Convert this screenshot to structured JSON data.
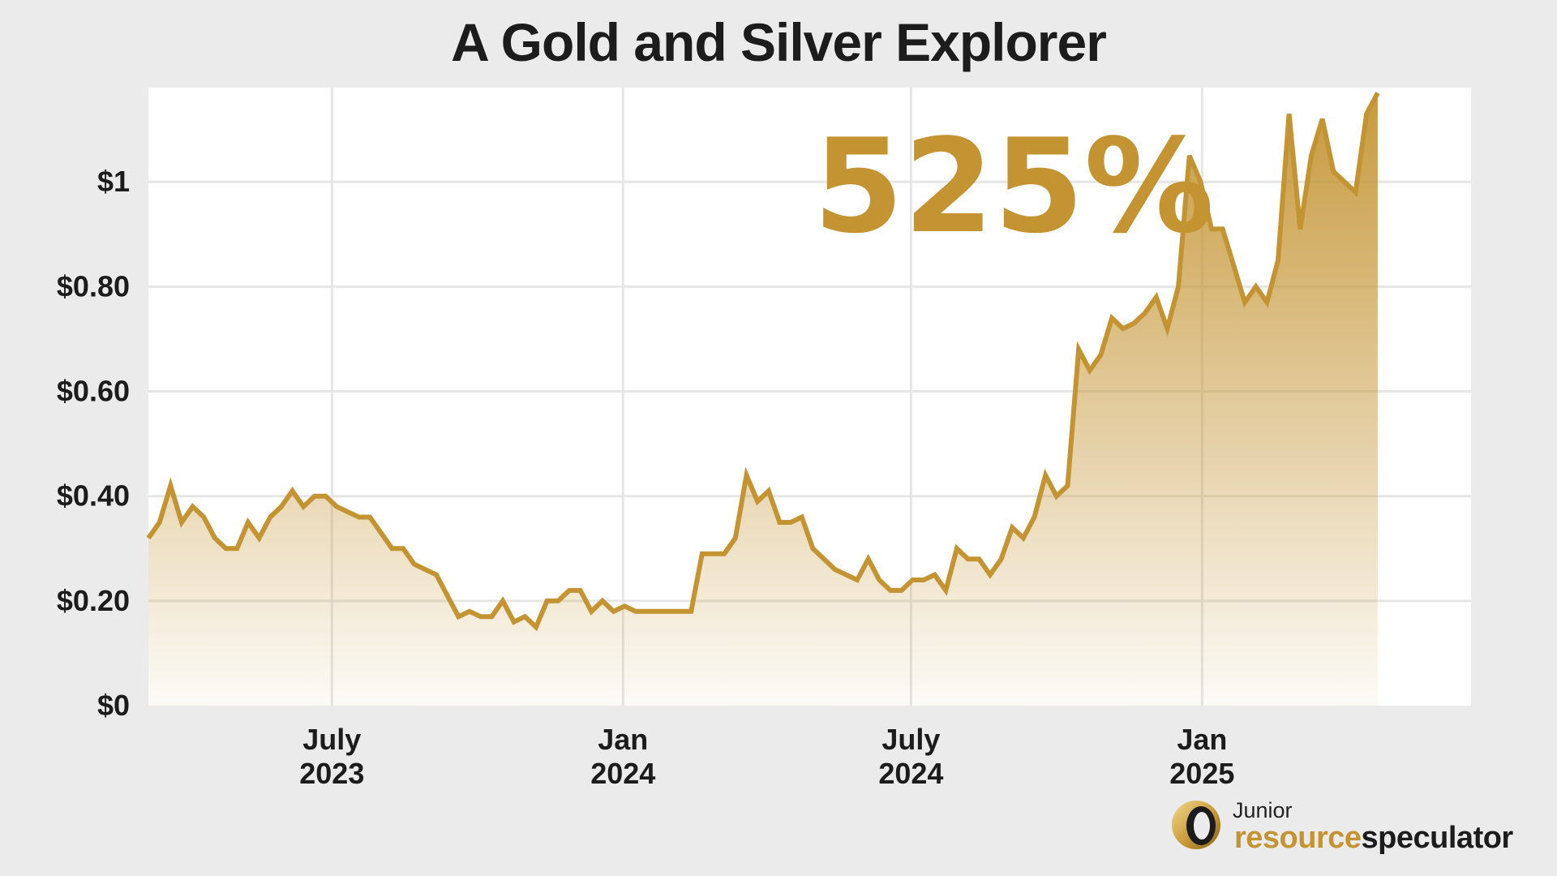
{
  "title": "A Gold and Silver Explorer",
  "annotation": "525%",
  "logo": {
    "line1": "Junior",
    "word1": "resource",
    "word2": "speculator"
  },
  "colors": {
    "line": "#c49433",
    "fill_top": "#c49433",
    "background": "#ebebeb",
    "plot_bg": "#ffffff",
    "grid": "#e6e6e6"
  },
  "chart_data": {
    "type": "area",
    "title": "A Gold and Silver Explorer",
    "xlabel": "",
    "ylabel": "",
    "grid": true,
    "yticks": [
      {
        "value": 0,
        "label": "$0"
      },
      {
        "value": 0.2,
        "label": "$0.20"
      },
      {
        "value": 0.4,
        "label": "$0.40"
      },
      {
        "value": 0.6,
        "label": "$0.60"
      },
      {
        "value": 0.8,
        "label": "$0.80"
      },
      {
        "value": 1.0,
        "label": "$1"
      }
    ],
    "xticks": [
      {
        "date": "2023-07-01",
        "line1": "July",
        "line2": "2023"
      },
      {
        "date": "2024-01-01",
        "line1": "Jan",
        "line2": "2024"
      },
      {
        "date": "2024-07-01",
        "line1": "July",
        "line2": "2024"
      },
      {
        "date": "2025-01-01",
        "line1": "Jan",
        "line2": "2025"
      }
    ],
    "xlim": [
      "2023-03-07",
      "2025-06-20"
    ],
    "ylim": [
      0,
      1.18
    ],
    "points": [
      [
        "2023-03-07",
        0.32
      ],
      [
        "2023-03-14",
        0.35
      ],
      [
        "2023-03-21",
        0.42
      ],
      [
        "2023-03-28",
        0.35
      ],
      [
        "2023-04-04",
        0.38
      ],
      [
        "2023-04-11",
        0.36
      ],
      [
        "2023-04-18",
        0.32
      ],
      [
        "2023-04-25",
        0.3
      ],
      [
        "2023-05-02",
        0.3
      ],
      [
        "2023-05-09",
        0.35
      ],
      [
        "2023-05-16",
        0.32
      ],
      [
        "2023-05-23",
        0.36
      ],
      [
        "2023-05-30",
        0.38
      ],
      [
        "2023-06-06",
        0.41
      ],
      [
        "2023-06-13",
        0.38
      ],
      [
        "2023-06-20",
        0.4
      ],
      [
        "2023-06-27",
        0.4
      ],
      [
        "2023-07-04",
        0.38
      ],
      [
        "2023-07-11",
        0.37
      ],
      [
        "2023-07-18",
        0.36
      ],
      [
        "2023-07-25",
        0.36
      ],
      [
        "2023-08-01",
        0.33
      ],
      [
        "2023-08-08",
        0.3
      ],
      [
        "2023-08-15",
        0.3
      ],
      [
        "2023-08-22",
        0.27
      ],
      [
        "2023-08-29",
        0.26
      ],
      [
        "2023-09-05",
        0.25
      ],
      [
        "2023-09-12",
        0.21
      ],
      [
        "2023-09-19",
        0.17
      ],
      [
        "2023-09-26",
        0.18
      ],
      [
        "2023-10-03",
        0.17
      ],
      [
        "2023-10-10",
        0.17
      ],
      [
        "2023-10-17",
        0.2
      ],
      [
        "2023-10-24",
        0.16
      ],
      [
        "2023-10-31",
        0.17
      ],
      [
        "2023-11-07",
        0.15
      ],
      [
        "2023-11-14",
        0.2
      ],
      [
        "2023-11-21",
        0.2
      ],
      [
        "2023-11-28",
        0.22
      ],
      [
        "2023-12-05",
        0.22
      ],
      [
        "2023-12-12",
        0.18
      ],
      [
        "2023-12-19",
        0.2
      ],
      [
        "2023-12-26",
        0.18
      ],
      [
        "2024-01-02",
        0.19
      ],
      [
        "2024-01-09",
        0.18
      ],
      [
        "2024-01-16",
        0.18
      ],
      [
        "2024-01-23",
        0.18
      ],
      [
        "2024-01-30",
        0.18
      ],
      [
        "2024-02-06",
        0.18
      ],
      [
        "2024-02-13",
        0.18
      ],
      [
        "2024-02-20",
        0.29
      ],
      [
        "2024-02-27",
        0.29
      ],
      [
        "2024-03-05",
        0.29
      ],
      [
        "2024-03-12",
        0.32
      ],
      [
        "2024-03-19",
        0.44
      ],
      [
        "2024-03-26",
        0.39
      ],
      [
        "2024-04-02",
        0.41
      ],
      [
        "2024-04-09",
        0.35
      ],
      [
        "2024-04-16",
        0.35
      ],
      [
        "2024-04-23",
        0.36
      ],
      [
        "2024-04-30",
        0.3
      ],
      [
        "2024-05-07",
        0.28
      ],
      [
        "2024-05-14",
        0.26
      ],
      [
        "2024-05-21",
        0.25
      ],
      [
        "2024-05-28",
        0.24
      ],
      [
        "2024-06-04",
        0.28
      ],
      [
        "2024-06-11",
        0.24
      ],
      [
        "2024-06-18",
        0.22
      ],
      [
        "2024-06-25",
        0.22
      ],
      [
        "2024-07-02",
        0.24
      ],
      [
        "2024-07-09",
        0.24
      ],
      [
        "2024-07-16",
        0.25
      ],
      [
        "2024-07-23",
        0.22
      ],
      [
        "2024-07-30",
        0.3
      ],
      [
        "2024-08-06",
        0.28
      ],
      [
        "2024-08-13",
        0.28
      ],
      [
        "2024-08-20",
        0.25
      ],
      [
        "2024-08-27",
        0.28
      ],
      [
        "2024-09-03",
        0.34
      ],
      [
        "2024-09-10",
        0.32
      ],
      [
        "2024-09-17",
        0.36
      ],
      [
        "2024-09-24",
        0.44
      ],
      [
        "2024-10-01",
        0.4
      ],
      [
        "2024-10-08",
        0.42
      ],
      [
        "2024-10-15",
        0.68
      ],
      [
        "2024-10-22",
        0.64
      ],
      [
        "2024-10-29",
        0.67
      ],
      [
        "2024-11-05",
        0.74
      ],
      [
        "2024-11-12",
        0.72
      ],
      [
        "2024-11-19",
        0.73
      ],
      [
        "2024-11-26",
        0.75
      ],
      [
        "2024-12-03",
        0.78
      ],
      [
        "2024-12-10",
        0.72
      ],
      [
        "2024-12-17",
        0.8
      ],
      [
        "2024-12-24",
        1.05
      ],
      [
        "2024-12-31",
        1.0
      ],
      [
        "2025-01-07",
        0.91
      ],
      [
        "2025-01-14",
        0.91
      ],
      [
        "2025-01-21",
        0.84
      ],
      [
        "2025-01-28",
        0.77
      ],
      [
        "2025-02-04",
        0.8
      ],
      [
        "2025-02-11",
        0.77
      ],
      [
        "2025-02-18",
        0.85
      ],
      [
        "2025-02-25",
        1.13
      ],
      [
        "2025-03-04",
        0.91
      ],
      [
        "2025-03-11",
        1.05
      ],
      [
        "2025-03-18",
        1.12
      ],
      [
        "2025-03-25",
        1.02
      ],
      [
        "2025-04-01",
        1.0
      ],
      [
        "2025-04-08",
        0.98
      ],
      [
        "2025-04-15",
        1.13
      ],
      [
        "2025-04-22",
        1.17
      ]
    ]
  }
}
